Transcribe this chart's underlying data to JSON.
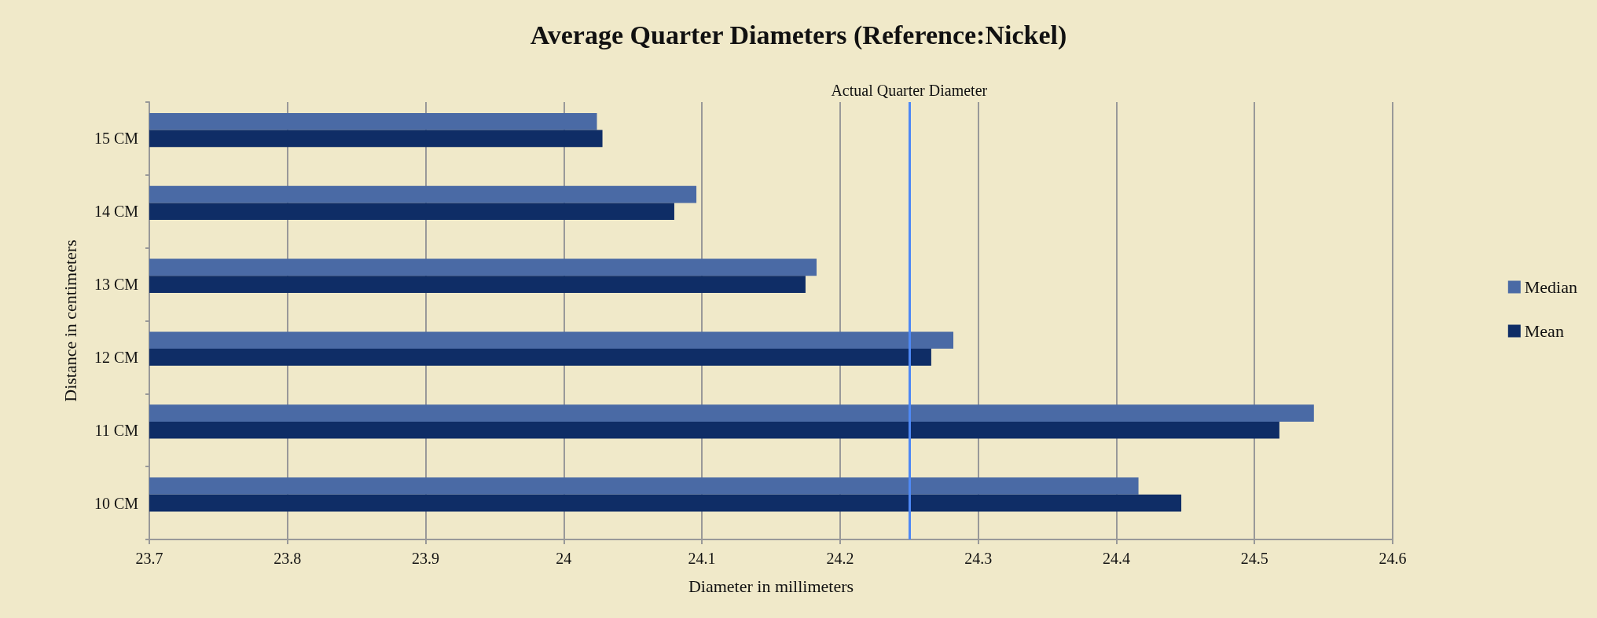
{
  "chart_data": {
    "type": "bar",
    "orientation": "horizontal",
    "title": "Average Quarter Diameters (Reference:Nickel)",
    "xlabel": "Diameter in millimeters",
    "ylabel": "Distance in centimeters",
    "categories": [
      "15 CM",
      "14 CM",
      "13 CM",
      "12 CM",
      "11 CM",
      "10 CM"
    ],
    "series": [
      {
        "name": "Median",
        "color": "#4a6aa5",
        "values": [
          24.024,
          24.096,
          24.183,
          24.282,
          24.543,
          24.416
        ]
      },
      {
        "name": "Mean",
        "color": "#0f2d66",
        "values": [
          24.028,
          24.08,
          24.175,
          24.266,
          24.518,
          24.447
        ]
      }
    ],
    "xlim": [
      23.7,
      24.6
    ],
    "xticks": [
      23.7,
      23.8,
      23.9,
      24,
      24.1,
      24.2,
      24.3,
      24.4,
      24.5,
      24.6
    ],
    "ref_lines": [
      {
        "axis": "x",
        "value": 24.25,
        "label": "Actual Quarter Diameter",
        "color": "#4d88f5"
      }
    ],
    "grid": "x",
    "legend": "right"
  }
}
